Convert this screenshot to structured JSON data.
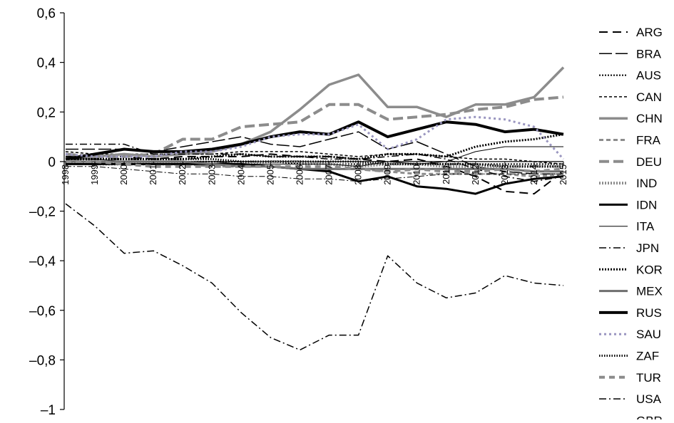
{
  "chart_data": {
    "type": "line",
    "title": "",
    "xlabel": "",
    "ylabel": "",
    "ylim": [
      -1,
      0.6
    ],
    "yticks": [
      "0,6",
      "0,4",
      "0,2",
      "0",
      "–0,2",
      "–0,4",
      "–0,6",
      "–0,8",
      "–1"
    ],
    "ytick_values": [
      0.6,
      0.4,
      0.2,
      0,
      -0.2,
      -0.4,
      -0.6,
      -0.8,
      -1
    ],
    "x": [
      "1998",
      "1999",
      "2000",
      "2001",
      "2002",
      "2003",
      "2004",
      "2005",
      "2006",
      "2007",
      "2008",
      "2009",
      "2010",
      "2011",
      "2012",
      "2013",
      "2014",
      "2015"
    ],
    "grid": false,
    "legend_position": "right",
    "series": [
      {
        "name": "ARG",
        "color": "#000000",
        "width": 2,
        "dash": "12,7",
        "values": [
          0.02,
          0.02,
          0.02,
          0.01,
          0.02,
          0.02,
          0.02,
          0.03,
          0.02,
          0.02,
          0.01,
          0.0,
          0.01,
          -0.02,
          -0.06,
          -0.12,
          -0.13,
          -0.04
        ]
      },
      {
        "name": "BRA",
        "color": "#000000",
        "width": 1.5,
        "dash": "18,5",
        "values": [
          0.05,
          0.05,
          0.05,
          0.04,
          0.06,
          0.08,
          0.1,
          0.07,
          0.06,
          0.09,
          0.12,
          0.05,
          0.08,
          0.03,
          -0.02,
          -0.04,
          -0.05,
          -0.05
        ]
      },
      {
        "name": "AUS",
        "color": "#000000",
        "width": 2,
        "dash": "2,2",
        "values": [
          0.0,
          0.0,
          0.0,
          0.0,
          0.0,
          0.0,
          0.0,
          0.0,
          -0.01,
          -0.01,
          -0.01,
          -0.01,
          -0.01,
          -0.01,
          -0.01,
          -0.01,
          -0.01,
          -0.01
        ]
      },
      {
        "name": "CAN",
        "color": "#000000",
        "width": 1.5,
        "dash": "4,3",
        "values": [
          0.04,
          0.03,
          0.03,
          0.03,
          0.03,
          0.03,
          0.04,
          0.04,
          0.04,
          0.03,
          0.02,
          0.03,
          0.03,
          0.02,
          0.01,
          0.01,
          0.0,
          -0.01
        ]
      },
      {
        "name": "CHN",
        "color": "#8c8c8c",
        "width": 3.5,
        "dash": "",
        "values": [
          0.01,
          0.02,
          0.03,
          0.02,
          0.03,
          0.04,
          0.07,
          0.12,
          0.21,
          0.31,
          0.35,
          0.22,
          0.22,
          0.18,
          0.23,
          0.23,
          0.26,
          0.38
        ]
      },
      {
        "name": "FRA",
        "color": "#8c8c8c",
        "width": 3,
        "dash": "6,4",
        "values": [
          0.0,
          0.0,
          -0.01,
          -0.01,
          -0.01,
          -0.02,
          -0.02,
          -0.02,
          -0.03,
          -0.03,
          -0.03,
          -0.04,
          -0.05,
          -0.05,
          -0.05,
          -0.05,
          -0.06,
          -0.05
        ]
      },
      {
        "name": "DEU",
        "color": "#8c8c8c",
        "width": 4,
        "dash": "14,6",
        "values": [
          0.03,
          0.02,
          0.02,
          0.03,
          0.09,
          0.09,
          0.14,
          0.15,
          0.16,
          0.23,
          0.23,
          0.17,
          0.18,
          0.19,
          0.21,
          0.22,
          0.25,
          0.26
        ]
      },
      {
        "name": "IND",
        "color": "#8c8c8c",
        "width": 4,
        "dash": "2,2",
        "values": [
          0.0,
          -0.01,
          -0.01,
          -0.01,
          -0.01,
          -0.01,
          -0.01,
          0.0,
          0.0,
          -0.01,
          -0.02,
          -0.01,
          -0.01,
          -0.02,
          -0.02,
          -0.02,
          -0.02,
          -0.02
        ]
      },
      {
        "name": "IDN",
        "color": "#000000",
        "width": 3,
        "dash": "",
        "values": [
          -0.01,
          -0.01,
          -0.01,
          -0.01,
          -0.01,
          -0.01,
          -0.01,
          -0.02,
          -0.03,
          -0.04,
          -0.08,
          -0.06,
          -0.1,
          -0.11,
          -0.13,
          -0.09,
          -0.07,
          -0.06
        ]
      },
      {
        "name": "ITA",
        "color": "#000000",
        "width": 1,
        "dash": "",
        "values": [
          0.01,
          0.01,
          0.0,
          0.0,
          0.0,
          0.0,
          -0.01,
          -0.01,
          -0.01,
          -0.01,
          -0.02,
          0.0,
          -0.01,
          0.0,
          0.04,
          0.06,
          0.06,
          0.06
        ]
      },
      {
        "name": "JPN",
        "color": "#000000",
        "width": 1.5,
        "dash": "10,4,2,4",
        "values": [
          0.07,
          0.07,
          0.07,
          0.03,
          0.03,
          0.03,
          0.03,
          0.02,
          0.02,
          0.01,
          0.01,
          0.02,
          0.03,
          0.01,
          -0.03,
          -0.06,
          -0.08,
          -0.06
        ]
      },
      {
        "name": "KOR",
        "color": "#000000",
        "width": 3,
        "dash": "2,2",
        "values": [
          0.01,
          0.01,
          0.01,
          0.01,
          0.01,
          0.02,
          0.03,
          0.02,
          0.02,
          0.02,
          0.01,
          0.03,
          0.03,
          0.02,
          0.06,
          0.08,
          0.09,
          0.11
        ]
      },
      {
        "name": "MEX",
        "color": "#6e6e6e",
        "width": 3,
        "dash": "",
        "values": [
          0.0,
          0.0,
          0.0,
          0.0,
          0.0,
          -0.01,
          -0.02,
          -0.02,
          -0.03,
          -0.03,
          -0.03,
          -0.03,
          -0.03,
          -0.03,
          -0.03,
          -0.03,
          -0.04,
          -0.04
        ]
      },
      {
        "name": "RUS",
        "color": "#000000",
        "width": 4,
        "dash": "",
        "values": [
          0.01,
          0.03,
          0.05,
          0.04,
          0.04,
          0.05,
          0.07,
          0.1,
          0.12,
          0.11,
          0.16,
          0.1,
          0.13,
          0.16,
          0.15,
          0.12,
          0.13,
          0.11
        ]
      },
      {
        "name": "SAU",
        "color": "#9a96c0",
        "width": 3,
        "dash": "3,4",
        "values": [
          0.03,
          0.02,
          0.02,
          0.02,
          0.04,
          0.04,
          0.06,
          0.1,
          0.11,
          0.11,
          0.15,
          0.05,
          0.09,
          0.17,
          0.18,
          0.17,
          0.14,
          0.01
        ]
      },
      {
        "name": "ZAF",
        "color": "#000000",
        "width": 3,
        "dash": "1.5,2",
        "values": [
          0.01,
          0.01,
          0.01,
          0.01,
          0.01,
          0.01,
          0.0,
          0.0,
          0.0,
          0.0,
          0.0,
          -0.01,
          -0.01,
          -0.01,
          -0.01,
          -0.02,
          -0.02,
          -0.02
        ]
      },
      {
        "name": "TUR",
        "color": "#8c8c8c",
        "width": 4,
        "dash": "8,6",
        "values": [
          0.0,
          0.0,
          -0.01,
          -0.02,
          -0.02,
          -0.02,
          -0.02,
          -0.02,
          -0.02,
          -0.02,
          -0.03,
          -0.04,
          -0.03,
          -0.04,
          -0.04,
          -0.03,
          -0.04,
          -0.03
        ]
      },
      {
        "name": "USA",
        "color": "#000000",
        "width": 1.5,
        "dash": "10,4,2,4",
        "values": [
          -0.17,
          -0.26,
          -0.37,
          -0.36,
          -0.42,
          -0.49,
          -0.61,
          -0.71,
          -0.76,
          -0.7,
          -0.7,
          -0.38,
          -0.49,
          -0.55,
          -0.53,
          -0.46,
          -0.49,
          -0.5
        ]
      },
      {
        "name": "GBR",
        "color": "#000000",
        "width": 1,
        "dash": "8,3,2,3",
        "values": [
          -0.02,
          -0.02,
          -0.03,
          -0.04,
          -0.05,
          -0.05,
          -0.06,
          -0.06,
          -0.07,
          -0.07,
          -0.08,
          -0.07,
          -0.06,
          -0.05,
          -0.05,
          -0.05,
          -0.05,
          -0.05
        ]
      }
    ]
  }
}
